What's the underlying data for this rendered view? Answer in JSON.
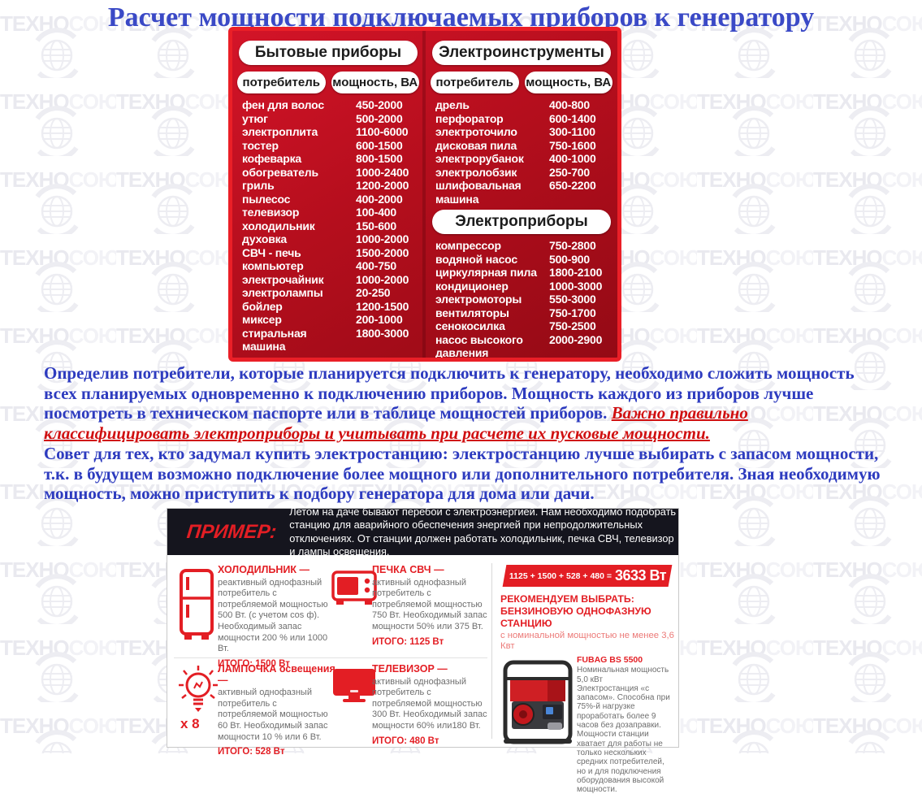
{
  "watermark": {
    "text_bold": "ТЕХНО",
    "text_light": "СОЮЗ",
    "reg": "®"
  },
  "title": "Расчет мощности подключаемых приборов к генератору",
  "table": {
    "col_headers": {
      "consumer": "потребитель",
      "power": "мощность, ВА"
    },
    "sections": [
      {
        "name": "Бытовые приборы",
        "rows": [
          {
            "name": "фен для волос",
            "power": "450-2000"
          },
          {
            "name": "утюг",
            "power": "500-2000"
          },
          {
            "name": "электроплита",
            "power": "1100-6000"
          },
          {
            "name": "тостер",
            "power": "600-1500"
          },
          {
            "name": "кофеварка",
            "power": "800-1500"
          },
          {
            "name": "обогреватель",
            "power": "1000-2400"
          },
          {
            "name": "гриль",
            "power": "1200-2000"
          },
          {
            "name": "пылесос",
            "power": "400-2000"
          },
          {
            "name": "телевизор",
            "power": "100-400"
          },
          {
            "name": "холодильник",
            "power": "150-600"
          },
          {
            "name": "духовка",
            "power": "1000-2000"
          },
          {
            "name": "СВЧ - печь",
            "power": "1500-2000"
          },
          {
            "name": "компьютер",
            "power": "400-750"
          },
          {
            "name": "электрочайник",
            "power": "1000-2000"
          },
          {
            "name": "электролампы",
            "power": "20-250"
          },
          {
            "name": "бойлер",
            "power": "1200-1500"
          },
          {
            "name": "миксер",
            "power": "200-1000"
          },
          {
            "name": "стиральная\nмашина",
            "power": "1800-3000"
          }
        ]
      },
      {
        "name": "Электроинструменты",
        "rows": [
          {
            "name": "дрель",
            "power": "400-800"
          },
          {
            "name": "перфоратор",
            "power": "600-1400"
          },
          {
            "name": "электроточило",
            "power": "300-1100"
          },
          {
            "name": "дисковая пила",
            "power": "750-1600"
          },
          {
            "name": "электрорубанок",
            "power": "400-1000"
          },
          {
            "name": "электролобзик",
            "power": "250-700"
          },
          {
            "name": "шлифовальная\nмашина",
            "power": "650-2200"
          }
        ]
      },
      {
        "name": "Электроприборы",
        "rows": [
          {
            "name": "компрессор",
            "power": "750-2800"
          },
          {
            "name": "водяной насос",
            "power": "500-900"
          },
          {
            "name": "циркулярная пила",
            "power": "1800-2100"
          },
          {
            "name": "кондиционер",
            "power": "1000-3000"
          },
          {
            "name": "электромоторы",
            "power": "550-3000"
          },
          {
            "name": "вентиляторы",
            "power": "750-1700"
          },
          {
            "name": "сенокосилка",
            "power": "750-2500"
          },
          {
            "name": "насос высокого\nдавления",
            "power": "2000-2900"
          }
        ]
      }
    ]
  },
  "paragraphs": {
    "p1_blue": "Определив потребители, которые планируется подключить к генератору, необходимо сложить мощность всех планируемых одновременно к подключению приборов. Мощность каждого из приборов лучше посмотреть в техническом паспорте или в таблице мощностей приборов. ",
    "p1_red": "Важно правильно классифицировать электроприборы и учитывать при расчете их пусковые мощности.",
    "p2": "Совет для тех, кто задумал купить электростанцию: электростанцию лучше выбирать с запасом мощности, т.к. в будущем возможно подключение более мощного или дополнительного потребителя. Зная необходимую мощность, можно приступить к подбору генератора для дома или дачи."
  },
  "example": {
    "label": "ПРИМЕР:",
    "intro": "Летом на даче бывают перебои с электроэнергией. Нам необходимо подобрать станцию для аварийного обеспечения энергией при непродолжительных отключениях. От станции должен работать холодильник, печка СВЧ, телевизор и лампы освещения.",
    "items": [
      {
        "icon": "fridge-icon",
        "title": "ХОЛОДИЛЬНИК —",
        "body": "реактивный однофазный потребитель с потребляемой мощностью 500 Вт. (с учетом cos ф). Необходимый запас мощности 200 % или 1000 Вт.",
        "total": "ИТОГО: 1500 Вт",
        "multiplier": ""
      },
      {
        "icon": "microwave-icon",
        "title": "ПЕЧКА СВЧ —",
        "body": "активный однофазный потребитель с потребляемой мощностью 750 Вт. Необходимый запас мощности 50% или 375 Вт.",
        "total": "ИТОГО: 1125 Вт",
        "multiplier": ""
      },
      {
        "icon": "bulb-icon",
        "title": "ЛАМПОЧКА освещения —",
        "body": "активный однофазный потребитель с потребляемой мощностью 60 Вт. Необходимый запас мощности 10 % или 6 Вт.",
        "total": "ИТОГО: 528 Вт",
        "multiplier": "х 8"
      },
      {
        "icon": "tv-icon",
        "title": "ТЕЛЕВИЗОР —",
        "body": "активный однофазный потребитель с потребляемой мощностью 300 Вт. Необходимый запас мощности 60% или180 Вт.",
        "total": "ИТОГО: 480 Вт",
        "multiplier": ""
      }
    ],
    "formula": {
      "sum": "1125 + 1500 + 528 + 480 =",
      "result": "3633 Вт"
    },
    "recommendation": {
      "line1": "РЕКОМЕНДУЕМ ВЫБРАТЬ:",
      "line2": "БЕНЗИНОВУЮ ОДНОФАЗНУЮ СТАНЦИЮ",
      "line3": "с номинальной мощностью не менее 3,6 Квт",
      "model": "FUBAG BS 5500",
      "specs": "Номинальная мощность 5,0 кВт",
      "description": "Электростанция «с запасом». Способна при 75%-й нагрузке проработать более 9 часов без дозаправки. Мощности станции хватает для работы не только нескольких средних потребителей, но и для подключения оборудования высокой мощности."
    }
  },
  "colors": {
    "accent_red": "#e31e24",
    "table_border": "#ea1f27",
    "table_bg_top": "#d31428",
    "table_bg_bottom": "#940a15",
    "title_blue": "#3a49c6",
    "text_blue": "#2d3bbf",
    "warning_red": "#d00f10",
    "example_header_dark": "#15151e",
    "light_red": "#ec7a78",
    "watermark_gray": "#ededf2"
  }
}
